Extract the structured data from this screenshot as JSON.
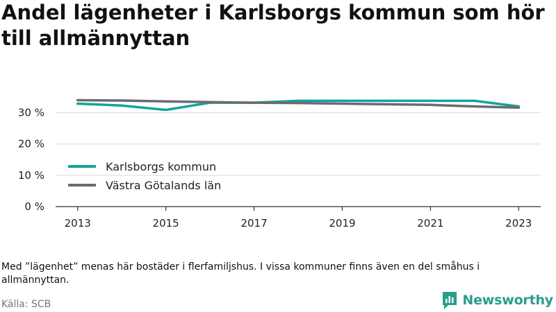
{
  "title": "Andel lägenheter i Karlsborgs kommun som hör till allmännyttan",
  "note": "Med ”lägenhet” menas här bostäder i flerfamiljshus. I vissa kommuner finns även en del småhus i allmännyttan.",
  "source": "Källa: SCB",
  "brand": {
    "name": "Newsworthy",
    "icon": "newsworthy-logo-icon"
  },
  "chart_data": {
    "type": "line",
    "title": "Andel lägenheter i Karlsborgs kommun som hör till allmännyttan",
    "xlabel": "",
    "ylabel": "",
    "x": [
      2013,
      2014,
      2015,
      2016,
      2017,
      2018,
      2019,
      2020,
      2021,
      2022,
      2023
    ],
    "xlim": [
      2012.5,
      2023.5
    ],
    "ylim": [
      0,
      35
    ],
    "yticks": [
      0,
      10,
      20,
      30
    ],
    "ytick_labels": [
      "0 %",
      "10 %",
      "20 %",
      "30 %"
    ],
    "xticks": [
      2013,
      2015,
      2017,
      2019,
      2021,
      2023
    ],
    "xtick_labels": [
      "2013",
      "2015",
      "2017",
      "2019",
      "2021",
      "2023"
    ],
    "grid": true,
    "legend_position": "lower-left",
    "series": [
      {
        "name": "Karlsborgs kommun",
        "color": "#15a39a",
        "values": [
          32.9,
          32.3,
          30.9,
          33.2,
          33.2,
          33.8,
          33.8,
          33.8,
          33.8,
          33.8,
          32.0
        ]
      },
      {
        "name": "Västra Götalands län",
        "color": "#6b6a70",
        "values": [
          34.0,
          33.9,
          33.6,
          33.4,
          33.2,
          33.1,
          32.9,
          32.7,
          32.5,
          32.0,
          31.6
        ]
      }
    ]
  }
}
